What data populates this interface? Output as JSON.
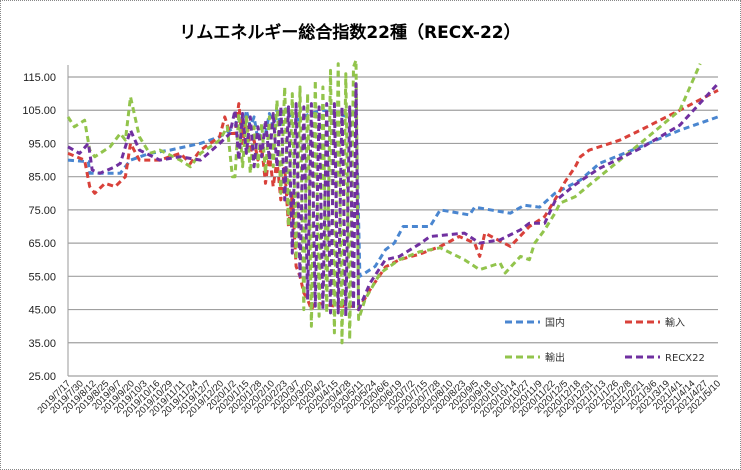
{
  "chart_data": {
    "type": "line",
    "title": "リムエネルギー総合指数22種（RECX-22）",
    "xlabel": "",
    "ylabel": "",
    "ylim": [
      25,
      115
    ],
    "yticks": [
      "25.00",
      "35.00",
      "45.00",
      "55.00",
      "65.00",
      "75.00",
      "85.00",
      "95.00",
      "105.00",
      "115.00"
    ],
    "ytick_values": [
      25,
      35,
      45,
      55,
      65,
      75,
      85,
      95,
      105,
      115
    ],
    "grid": true,
    "legend_position": "bottom-right",
    "x_note": "x values are positions in units of category-label index",
    "categories": [
      "2019/7/17",
      "2019/7/30",
      "2019/8/12",
      "2019/8/25",
      "2019/9/7",
      "2019/9/20",
      "2019/10/3",
      "2019/10/16",
      "2019/10/29",
      "2019/11/11",
      "2019/11/24",
      "2019/12/7",
      "2019/12/20",
      "2020/1/2",
      "2020/1/15",
      "2020/1/28",
      "2020/2/10",
      "2020/2/23",
      "2020/3/7",
      "2020/3/20",
      "2020/4/2",
      "2020/4/15",
      "2020/4/28",
      "2020/5/11",
      "2020/5/24",
      "2020/6/6",
      "2020/6/19",
      "2020/7/2",
      "2020/7/15",
      "2020/7/28",
      "2020/8/10",
      "2020/8/23",
      "2020/9/5",
      "2020/9/18",
      "2020/10/1",
      "2020/10/14",
      "2020/10/27",
      "2020/11/9",
      "2020/11/22",
      "2020/12/5",
      "2020/12/18",
      "2020/12/31",
      "2021/1/13",
      "2021/1/26",
      "2021/2/8",
      "2021/2/21",
      "2021/3/6",
      "2021/3/19",
      "2021/4/1",
      "2021/4/14",
      "2021/4/27",
      "2021/5/10"
    ],
    "series": [
      {
        "name": "国内",
        "color": "#4a86d0",
        "points": [
          [
            0,
            90
          ],
          [
            1.6,
            89.5
          ],
          [
            1.7,
            86
          ],
          [
            4.1,
            86
          ],
          [
            4.5,
            88
          ],
          [
            4.9,
            90
          ],
          [
            6.4,
            92
          ],
          [
            8.0,
            93
          ],
          [
            10.4,
            95
          ],
          [
            11.9,
            97
          ],
          [
            12.7,
            99
          ],
          [
            13.1,
            100
          ],
          [
            13.4,
            104
          ],
          [
            13.7,
            98
          ],
          [
            14.0,
            105
          ],
          [
            14.3,
            100
          ],
          [
            14.6,
            103
          ],
          [
            14.9,
            96
          ],
          [
            15.2,
            100
          ],
          [
            15.5,
            98
          ],
          [
            15.8,
            104
          ],
          [
            16.1,
            100
          ],
          [
            16.4,
            105
          ],
          [
            16.7,
            100
          ],
          [
            17.0,
            106
          ],
          [
            17.3,
            103
          ],
          [
            17.6,
            104
          ],
          [
            18.0,
            102
          ],
          [
            19.0,
            104
          ],
          [
            20.0,
            105
          ],
          [
            21.0,
            104
          ],
          [
            22.0,
            103
          ],
          [
            22.6,
            105
          ],
          [
            22.9,
            55
          ],
          [
            24.1,
            58
          ],
          [
            24.9,
            63
          ],
          [
            25.6,
            65
          ],
          [
            26.3,
            70
          ],
          [
            28.4,
            70
          ],
          [
            29.2,
            75
          ],
          [
            31.5,
            73.5
          ],
          [
            31.9,
            75.8
          ],
          [
            34.7,
            74
          ],
          [
            35.8,
            76.4
          ],
          [
            37.0,
            75.8
          ],
          [
            38.2,
            80
          ],
          [
            40.2,
            84
          ],
          [
            41.7,
            89
          ],
          [
            44.9,
            94
          ],
          [
            48.0,
            99
          ],
          [
            51.0,
            103
          ]
        ]
      },
      {
        "name": "輸入",
        "color": "#d9413a",
        "points": [
          [
            0,
            92
          ],
          [
            1.3,
            90
          ],
          [
            1.7,
            82
          ],
          [
            2.1,
            80
          ],
          [
            2.9,
            83
          ],
          [
            3.7,
            82
          ],
          [
            4.5,
            85
          ],
          [
            4.9,
            95
          ],
          [
            5.6,
            90
          ],
          [
            7.2,
            90
          ],
          [
            8.8,
            92
          ],
          [
            9.6,
            89
          ],
          [
            10.4,
            93
          ],
          [
            11.9,
            97
          ],
          [
            12.3,
            103
          ],
          [
            12.7,
            98
          ],
          [
            13.1,
            98
          ],
          [
            13.4,
            107
          ],
          [
            13.7,
            95
          ],
          [
            14.0,
            103
          ],
          [
            14.3,
            92
          ],
          [
            14.6,
            96
          ],
          [
            14.9,
            90
          ],
          [
            15.2,
            94
          ],
          [
            15.5,
            83
          ],
          [
            15.8,
            92
          ],
          [
            16.1,
            82
          ],
          [
            16.4,
            90
          ],
          [
            16.7,
            78
          ],
          [
            17.0,
            88
          ],
          [
            17.3,
            70
          ],
          [
            17.6,
            80
          ],
          [
            17.9,
            58
          ],
          [
            18.2,
            55
          ],
          [
            18.5,
            50
          ],
          [
            18.8,
            48
          ],
          [
            19.1,
            45
          ],
          [
            19.4,
            47
          ],
          [
            21.0,
            46
          ],
          [
            22.5,
            46
          ],
          [
            22.8,
            45
          ],
          [
            23.7,
            51
          ],
          [
            24.9,
            57.8
          ],
          [
            26.0,
            60
          ],
          [
            27.6,
            61.7
          ],
          [
            29.2,
            64
          ],
          [
            30.7,
            67
          ],
          [
            31.9,
            65
          ],
          [
            32.3,
            61
          ],
          [
            32.7,
            68
          ],
          [
            34.7,
            64
          ],
          [
            36.2,
            70
          ],
          [
            37.4,
            73
          ],
          [
            38.2,
            78
          ],
          [
            39.0,
            83.5
          ],
          [
            39.8,
            88
          ],
          [
            40.2,
            91
          ],
          [
            40.9,
            93
          ],
          [
            43.3,
            96
          ],
          [
            44.9,
            99
          ],
          [
            48.0,
            105
          ],
          [
            51.0,
            111
          ]
        ]
      },
      {
        "name": "輸出",
        "color": "#92c44c",
        "points": [
          [
            0,
            103
          ],
          [
            0.5,
            100
          ],
          [
            1.3,
            102
          ],
          [
            1.7,
            93
          ],
          [
            2.1,
            91
          ],
          [
            3.3,
            94
          ],
          [
            4.1,
            98
          ],
          [
            4.5,
            96
          ],
          [
            4.9,
            109
          ],
          [
            5.6,
            97
          ],
          [
            6.4,
            92
          ],
          [
            7.2,
            93
          ],
          [
            8.8,
            90
          ],
          [
            9.6,
            88
          ],
          [
            10.4,
            92
          ],
          [
            11.9,
            96
          ],
          [
            12.5,
            100
          ],
          [
            12.9,
            85
          ],
          [
            13.1,
            85
          ],
          [
            13.4,
            104
          ],
          [
            13.7,
            88
          ],
          [
            14.0,
            103
          ],
          [
            14.3,
            86
          ],
          [
            14.6,
            100
          ],
          [
            14.9,
            88
          ],
          [
            15.2,
            101
          ],
          [
            15.5,
            86
          ],
          [
            15.8,
            103
          ],
          [
            16.1,
            88
          ],
          [
            16.4,
            108
          ],
          [
            16.7,
            80
          ],
          [
            17.0,
            112
          ],
          [
            17.3,
            70
          ],
          [
            17.6,
            110
          ],
          [
            17.9,
            60
          ],
          [
            18.2,
            112
          ],
          [
            18.5,
            45
          ],
          [
            18.8,
            110
          ],
          [
            19.1,
            40
          ],
          [
            19.4,
            114
          ],
          [
            19.7,
            43
          ],
          [
            20.0,
            112
          ],
          [
            20.3,
            44
          ],
          [
            20.6,
            117
          ],
          [
            20.9,
            38
          ],
          [
            21.2,
            119
          ],
          [
            21.5,
            35
          ],
          [
            21.8,
            116
          ],
          [
            22.1,
            36
          ],
          [
            22.4,
            118
          ],
          [
            22.6,
            120
          ],
          [
            22.8,
            42
          ],
          [
            23.3,
            48
          ],
          [
            24.5,
            56
          ],
          [
            26.0,
            60
          ],
          [
            27.6,
            62.4
          ],
          [
            29.2,
            63.6
          ],
          [
            31.1,
            60
          ],
          [
            32.3,
            57
          ],
          [
            33.9,
            59
          ],
          [
            34.3,
            56
          ],
          [
            35.5,
            61
          ],
          [
            36.2,
            60
          ],
          [
            36.6,
            64.9
          ],
          [
            37.4,
            69
          ],
          [
            38.2,
            74
          ],
          [
            38.6,
            77
          ],
          [
            39.8,
            79
          ],
          [
            41.7,
            85
          ],
          [
            44.9,
            95
          ],
          [
            48.0,
            105
          ],
          [
            49.6,
            119
          ]
        ]
      },
      {
        "name": "RECX22",
        "color": "#7030a0",
        "points": [
          [
            0,
            94
          ],
          [
            0.9,
            92
          ],
          [
            1.6,
            95
          ],
          [
            1.9,
            87
          ],
          [
            2.5,
            86
          ],
          [
            3.7,
            88
          ],
          [
            4.1,
            89
          ],
          [
            4.9,
            99
          ],
          [
            5.6,
            93
          ],
          [
            7.2,
            90
          ],
          [
            8.8,
            91
          ],
          [
            10.4,
            90
          ],
          [
            11.9,
            95
          ],
          [
            12.7,
            98
          ],
          [
            13.1,
            105
          ],
          [
            13.4,
            90
          ],
          [
            13.7,
            104
          ],
          [
            14.0,
            92
          ],
          [
            14.3,
            103
          ],
          [
            14.6,
            88
          ],
          [
            14.9,
            100
          ],
          [
            15.2,
            91
          ],
          [
            15.5,
            102
          ],
          [
            15.8,
            90
          ],
          [
            16.1,
            104
          ],
          [
            16.4,
            88
          ],
          [
            16.7,
            106
          ],
          [
            17.0,
            78
          ],
          [
            17.3,
            106
          ],
          [
            17.6,
            62
          ],
          [
            17.9,
            107
          ],
          [
            18.2,
            55
          ],
          [
            18.5,
            106
          ],
          [
            18.8,
            48
          ],
          [
            19.1,
            107
          ],
          [
            19.4,
            46
          ],
          [
            19.7,
            106
          ],
          [
            20.0,
            45
          ],
          [
            20.3,
            107
          ],
          [
            20.6,
            44
          ],
          [
            20.9,
            107
          ],
          [
            21.2,
            44
          ],
          [
            21.5,
            106
          ],
          [
            21.8,
            43
          ],
          [
            22.1,
            106
          ],
          [
            22.4,
            45
          ],
          [
            22.6,
            113
          ],
          [
            22.8,
            45
          ],
          [
            23.7,
            53
          ],
          [
            24.9,
            60
          ],
          [
            26.0,
            61
          ],
          [
            27.6,
            64.8
          ],
          [
            28.4,
            67
          ],
          [
            31.1,
            68
          ],
          [
            32.3,
            65
          ],
          [
            33.9,
            66
          ],
          [
            35.5,
            69
          ],
          [
            36.2,
            71
          ],
          [
            37.4,
            71
          ],
          [
            38.2,
            77.6
          ],
          [
            39.8,
            82.6
          ],
          [
            40.9,
            85.5
          ],
          [
            41.7,
            87.5
          ],
          [
            44.9,
            93.5
          ],
          [
            48.0,
            100.5
          ],
          [
            51.0,
            113
          ]
        ]
      }
    ]
  }
}
